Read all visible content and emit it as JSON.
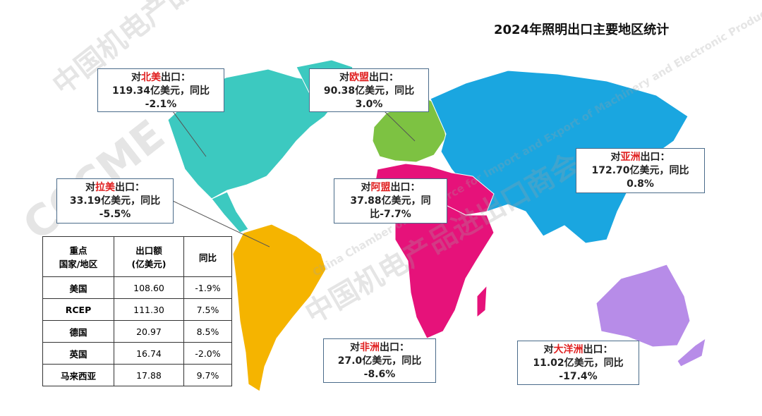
{
  "title": "2024年照明出口主要地区统计",
  "watermark": {
    "logo": "CCCME",
    "cn": "中国机电产品进出口商会",
    "en": "China Chamber of Commerce for Import and Export of Machinery and Electronic Products"
  },
  "callouts": [
    {
      "prefix": "对",
      "region": "北美",
      "suffix": "出口：",
      "lines": [
        "119.34亿美元，同比",
        "-2.1%"
      ]
    },
    {
      "prefix": "对",
      "region": "欧盟",
      "suffix": "出口：",
      "lines": [
        "90.38亿美元，同比",
        "3.0%"
      ]
    },
    {
      "prefix": "对",
      "region": "亚洲",
      "suffix": "出口：",
      "lines": [
        "172.70亿美元，同比",
        "0.8%"
      ]
    },
    {
      "prefix": "对",
      "region": "拉美",
      "suffix": "出口：",
      "lines": [
        "33.19亿美元，同比",
        "-5.5%"
      ]
    },
    {
      "prefix": "对",
      "region": "阿盟",
      "suffix": "出口：",
      "lines": [
        "37.88亿美元，同",
        "比-7.7%"
      ]
    },
    {
      "prefix": "对",
      "region": "非洲",
      "suffix": "出口：",
      "lines": [
        "27.0亿美元，同比",
        "-8.6%"
      ]
    },
    {
      "prefix": "对",
      "region": "大洋洲",
      "suffix": "出口：",
      "lines": [
        "11.02亿美元，同比",
        "-17.4%"
      ]
    }
  ],
  "table": {
    "header": [
      [
        "重点",
        "国家/地区"
      ],
      [
        "出口额",
        "(亿美元)"
      ],
      [
        "同比"
      ]
    ],
    "rows": [
      [
        "美国",
        "108.60",
        "-1.9%"
      ],
      [
        "RCEP",
        "111.30",
        "7.5%"
      ],
      [
        "德国",
        "20.97",
        "8.5%"
      ],
      [
        "英国",
        "16.74",
        "-2.0%"
      ],
      [
        "马来西亚",
        "17.88",
        "9.7%"
      ]
    ]
  }
}
